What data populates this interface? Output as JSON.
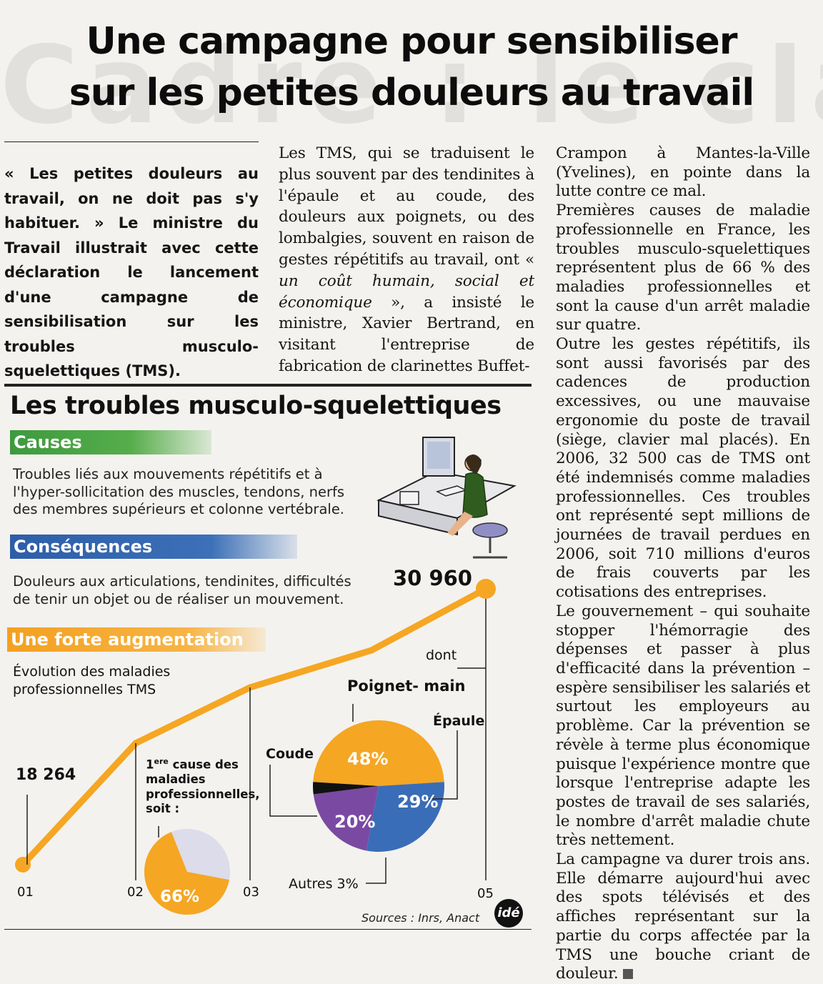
{
  "background_text": "Cadre : le cla",
  "headline": {
    "line1": "Une campagne pour sensibiliser",
    "line2": "sur les petites douleurs au travail"
  },
  "lede": "« Les petites douleurs au travail, on ne doit pas s'y habituer. » Le ministre du Travail illustrait avec cette déclaration le lancement d'une campagne de sensibilisation sur les troubles musculo-squelettiques (TMS).",
  "column2": {
    "text_a": "Les TMS, qui se traduisent le plus souvent par des tendinites à l'épaule et au coude, des douleurs aux poignets, ou des lombalgies, souvent en raison de gestes répétitifs au travail, ont « ",
    "quote": "un coût humain, social et économique",
    "text_b": " », a insisté le ministre, Xavier Bertrand, en visitant l'entreprise de fabrication de clarinettes Buffet-"
  },
  "column3": {
    "p1": "Crampon à Mantes-la-Ville (Yvelines), en pointe dans la lutte contre ce mal.",
    "p2": "Premières causes de maladie professionnelle en France, les troubles musculo-squelettiques représentent plus de 66 % des maladies professionnelles et sont la cause d'un arrêt maladie sur quatre.",
    "p3": "Outre les gestes répétitifs, ils sont aussi favorisés par des cadences de production excessives, ou une mauvaise ergonomie du poste de travail (siège, clavier mal placés). En 2006, 32 500 cas de TMS ont été indemnisés comme maladies professionnelles. Ces troubles ont représenté sept millions de journées de travail perdues en 2006, soit 710 millions d'euros de frais couverts par les cotisations des entreprises.",
    "p4": "Le gouvernement – qui souhaite stopper l'hémorragie des dépenses et passer à plus d'efficacité dans la prévention – espère sensibiliser les salariés et surtout les employeurs au problème. Car la prévention se révèle à terme plus économique puisque l'expérience montre que lorsque l'entreprise adapte les postes de travail de ses salariés, le nombre d'arrêt maladie chute très nettement.",
    "p5": "La campagne va durer trois ans. Elle démarre aujourd'hui avec des spots télévisés et des affiches représentant sur la partie du corps affectée par la TMS une bouche criant de douleur."
  },
  "infographic": {
    "title": "Les troubles musculo-squelettiques",
    "causes_label": "Causes",
    "causes_text": "Troubles liés aux mouvements répétitifs et à l'hyper-sollicitation des muscles, tendons, nerfs des membres supérieurs et colonne vertébrale.",
    "consequences_label": "Conséquences",
    "consequences_text": "Douleurs aux articulations, tendinites, difficultés de tenir un objet ou de réaliser un mouvement.",
    "augmentation_label": "Une forte augmentation",
    "evolution_label": "Évolution des maladies professionnelles TMS",
    "first_cause_sup": "ere",
    "first_cause_num": "1",
    "first_cause_text": " cause des maladies professionnelles, soit :",
    "dont_label": "dont",
    "sources": "Sources : Inrs, Anact",
    "logo": "idé",
    "colors": {
      "orange": "#f5a623",
      "blue": "#3a6db7",
      "purple": "#7a4aa3",
      "black": "#111111",
      "lavender": "#dcdcea"
    }
  },
  "chart_data": [
    {
      "type": "line",
      "x": [
        "01",
        "02",
        "03",
        "05"
      ],
      "values": [
        18264,
        null,
        null,
        30960
      ],
      "point_labels": [
        "18 264",
        "",
        "",
        "30 960"
      ],
      "xlabel": "",
      "ylabel": ""
    },
    {
      "type": "pie",
      "labels": [
        ""
      ],
      "values": [
        66
      ],
      "value_labels": [
        "66%"
      ]
    },
    {
      "type": "pie",
      "labels": [
        "Poignet- main",
        "Épaule",
        "Coude",
        "Autres 3%"
      ],
      "values": [
        48,
        29,
        20,
        3
      ],
      "value_labels": [
        "48%",
        "29%",
        "20%",
        ""
      ]
    }
  ]
}
